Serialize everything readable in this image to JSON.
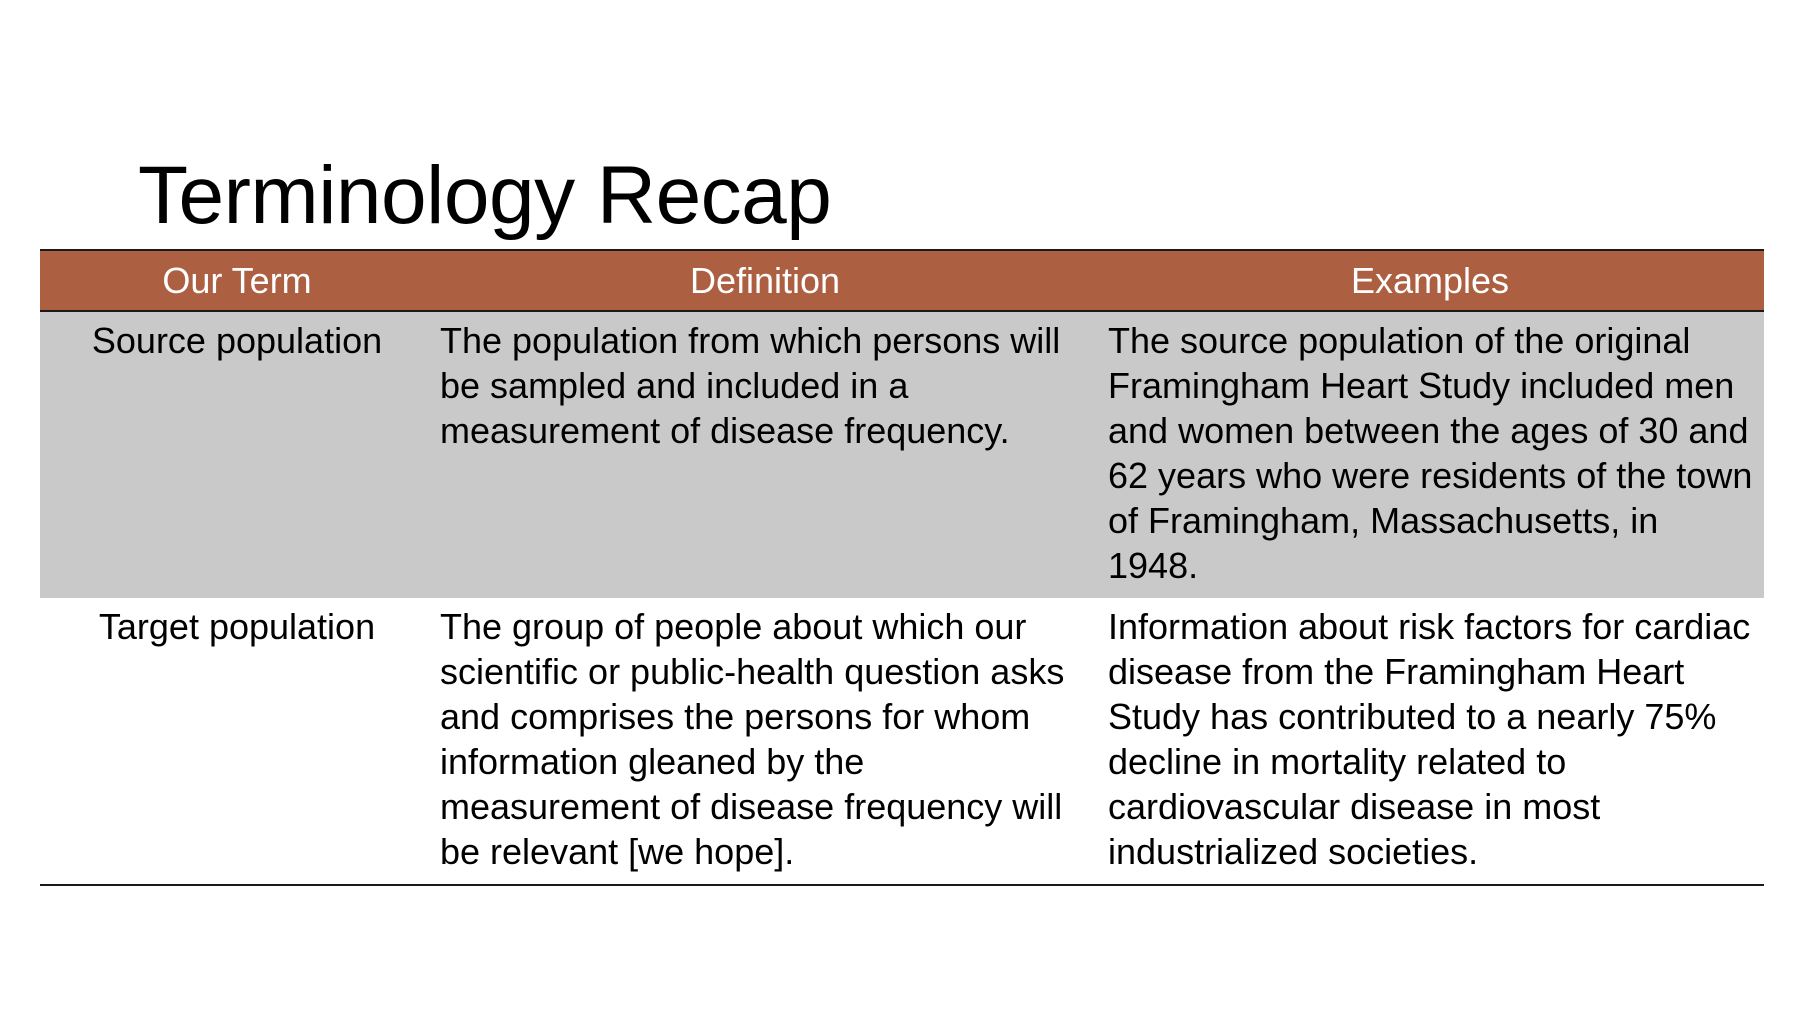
{
  "slide": {
    "title": "Terminology Recap"
  },
  "table": {
    "headers": {
      "term": "Our Term",
      "definition": "Definition",
      "examples": "Examples"
    },
    "rows": [
      {
        "term": "Source population",
        "definition": "The population from which persons will be sampled and included in a measurement of disease frequency.",
        "example": "The source population of the original Framingham Heart Study included men and women between the ages of 30 and 62 years who were residents of the town of Framingham, Massachusetts, in 1948."
      },
      {
        "term": "Target population",
        "definition": "The group of people about which our scientific or public-health question asks and comprises the persons for whom information gleaned by the measurement of disease frequency will be relevant [we hope].",
        "example": "Information about risk factors for cardiac disease from the Framingham Heart Study has contributed to a nearly 75% decline in mortality related to cardiovascular disease in most industrialized societies."
      }
    ]
  },
  "colors": {
    "header_background": "#ad5f42",
    "header_text": "#ffffff",
    "shaded_row": "#c9c9c9"
  }
}
